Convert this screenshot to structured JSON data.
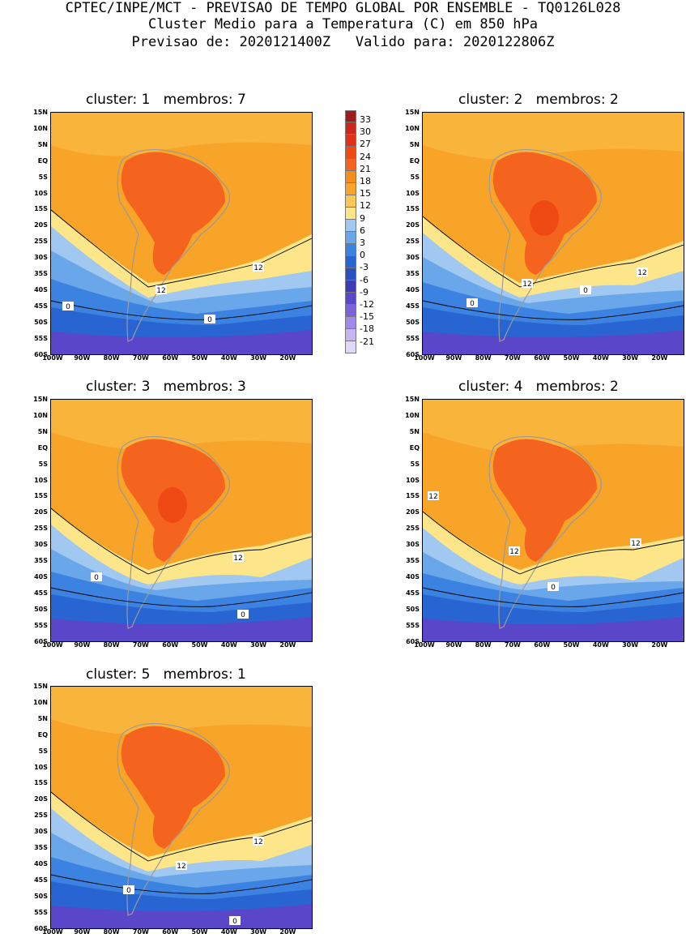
{
  "header": {
    "line1": "CPTEC/INPE/MCT - PREVISAO DE TEMPO GLOBAL POR ENSEMBLE - TQ0126L028",
    "line2": "Cluster Medio para a Temperatura (C) em 850 hPa",
    "line3": "Previsao de: 2020121400Z   Valido para: 2020122806Z"
  },
  "panels": [
    {
      "title": "cluster: 1   membros: 7",
      "contours": [
        "12",
        "12",
        "0",
        "0"
      ]
    },
    {
      "title": "cluster: 2   membros: 2",
      "contours": [
        "12",
        "12",
        "0",
        "0"
      ]
    },
    {
      "title": "cluster: 3   membros: 3",
      "contours": [
        "12",
        "0",
        "0"
      ]
    },
    {
      "title": "cluster: 4   membros: 2",
      "contours": [
        "12",
        "12",
        "12",
        "0"
      ]
    },
    {
      "title": "cluster: 5   membros: 1",
      "contours": [
        "12",
        "12",
        "0",
        "0"
      ]
    }
  ],
  "lat_labels": [
    "15N",
    "10N",
    "5N",
    "EQ",
    "5S",
    "10S",
    "15S",
    "20S",
    "25S",
    "30S",
    "35S",
    "40S",
    "45S",
    "50S",
    "55S",
    "60S"
  ],
  "lon_labels": [
    "100W",
    "90W",
    "80W",
    "70W",
    "60W",
    "50W",
    "40W",
    "30W",
    "20W"
  ],
  "colorbar": {
    "labels": [
      "33",
      "30",
      "27",
      "24",
      "21",
      "18",
      "15",
      "12",
      "9",
      "6",
      "3",
      "0",
      "-3",
      "-6",
      "-9",
      "-12",
      "-15",
      "-18",
      "-21"
    ],
    "colors": [
      "#a01c1c",
      "#c8281e",
      "#e03218",
      "#f04a14",
      "#f5641e",
      "#f58c1e",
      "#f7a428",
      "#fac85a",
      "#fde68a",
      "#a0c8f0",
      "#6aa6ea",
      "#3c82e0",
      "#2864d2",
      "#2850c0",
      "#3c3cb4",
      "#5a46c8",
      "#7a64d8",
      "#a08ce6",
      "#c8b4f0",
      "#e0d8f8"
    ]
  }
}
